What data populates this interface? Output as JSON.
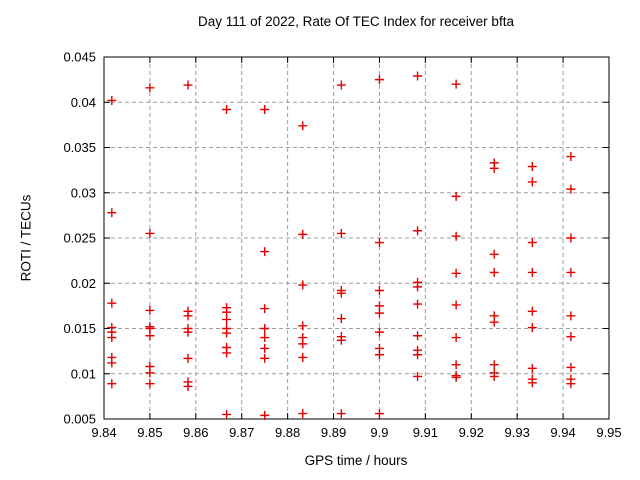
{
  "chart_data": {
    "type": "scatter",
    "title": "Day 111 of 2022, Rate Of TEC Index for receiver bfta",
    "xlabel": "GPS time / hours",
    "ylabel": "ROTI / TECUs",
    "xlim": [
      9.84,
      9.95
    ],
    "ylim": [
      0.005,
      0.045
    ],
    "grid": true,
    "legend": "none",
    "marker": "plus",
    "marker_color": "#e60000",
    "grid_color": "#9e9e9e",
    "axis_color": "#000000",
    "xticks": {
      "values": [
        9.84,
        9.85,
        9.86,
        9.87,
        9.88,
        9.89,
        9.9,
        9.91,
        9.92,
        9.93,
        9.94,
        9.95
      ],
      "labels": [
        "9.84",
        "9.85",
        "9.86",
        "9.87",
        "9.88",
        "9.89",
        "9.9",
        "9.91",
        "9.92",
        "9.93",
        "9.94",
        "9.95"
      ]
    },
    "yticks": {
      "values": [
        0.005,
        0.01,
        0.015,
        0.02,
        0.025,
        0.03,
        0.035,
        0.04,
        0.045
      ],
      "labels": [
        "0.005",
        "0.01",
        "0.015",
        "0.02",
        "0.025",
        "0.03",
        "0.035",
        "0.04",
        "0.045"
      ]
    },
    "series": [
      {
        "name": "ROTI",
        "points": [
          [
            9.8417,
            0.0402
          ],
          [
            9.8417,
            0.0278
          ],
          [
            9.8417,
            0.0178
          ],
          [
            9.8417,
            0.0151
          ],
          [
            9.8417,
            0.0146
          ],
          [
            9.8417,
            0.014
          ],
          [
            9.8417,
            0.0118
          ],
          [
            9.8417,
            0.0112
          ],
          [
            9.8417,
            0.0089
          ],
          [
            9.85,
            0.0416
          ],
          [
            9.85,
            0.0255
          ],
          [
            9.85,
            0.017
          ],
          [
            9.85,
            0.0152
          ],
          [
            9.85,
            0.015
          ],
          [
            9.85,
            0.0142
          ],
          [
            9.85,
            0.0108
          ],
          [
            9.85,
            0.0101
          ],
          [
            9.85,
            0.0089
          ],
          [
            9.8583,
            0.0419
          ],
          [
            9.8583,
            0.0169
          ],
          [
            9.8583,
            0.0164
          ],
          [
            9.8583,
            0.015
          ],
          [
            9.8583,
            0.0146
          ],
          [
            9.8583,
            0.0117
          ],
          [
            9.8583,
            0.0091
          ],
          [
            9.8583,
            0.0086
          ],
          [
            9.8667,
            0.0392
          ],
          [
            9.8667,
            0.0173
          ],
          [
            9.8667,
            0.0168
          ],
          [
            9.8667,
            0.016
          ],
          [
            9.8667,
            0.015
          ],
          [
            9.8667,
            0.0145
          ],
          [
            9.8667,
            0.0129
          ],
          [
            9.8667,
            0.0123
          ],
          [
            9.8667,
            0.0055
          ],
          [
            9.875,
            0.0392
          ],
          [
            9.875,
            0.0235
          ],
          [
            9.875,
            0.0172
          ],
          [
            9.875,
            0.015
          ],
          [
            9.875,
            0.014
          ],
          [
            9.875,
            0.0128
          ],
          [
            9.875,
            0.0117
          ],
          [
            9.875,
            0.0054
          ],
          [
            9.8833,
            0.0374
          ],
          [
            9.8833,
            0.0254
          ],
          [
            9.8833,
            0.0198
          ],
          [
            9.8833,
            0.0153
          ],
          [
            9.8833,
            0.014
          ],
          [
            9.8833,
            0.0133
          ],
          [
            9.8833,
            0.0118
          ],
          [
            9.8833,
            0.0056
          ],
          [
            9.8917,
            0.0419
          ],
          [
            9.8917,
            0.0255
          ],
          [
            9.8917,
            0.0192
          ],
          [
            9.8917,
            0.0189
          ],
          [
            9.8917,
            0.0161
          ],
          [
            9.8917,
            0.0141
          ],
          [
            9.8917,
            0.0137
          ],
          [
            9.8917,
            0.0056
          ],
          [
            9.9,
            0.0425
          ],
          [
            9.9,
            0.0245
          ],
          [
            9.9,
            0.0192
          ],
          [
            9.9,
            0.0175
          ],
          [
            9.9,
            0.0167
          ],
          [
            9.9,
            0.0146
          ],
          [
            9.9,
            0.0128
          ],
          [
            9.9,
            0.0121
          ],
          [
            9.9,
            0.0056
          ],
          [
            9.9083,
            0.0429
          ],
          [
            9.9083,
            0.0258
          ],
          [
            9.9083,
            0.0201
          ],
          [
            9.9083,
            0.0196
          ],
          [
            9.9083,
            0.0177
          ],
          [
            9.9083,
            0.0142
          ],
          [
            9.9083,
            0.0126
          ],
          [
            9.9083,
            0.0121
          ],
          [
            9.9083,
            0.0097
          ],
          [
            9.9167,
            0.042
          ],
          [
            9.9167,
            0.0296
          ],
          [
            9.9167,
            0.0252
          ],
          [
            9.9167,
            0.0211
          ],
          [
            9.9167,
            0.0176
          ],
          [
            9.9167,
            0.014
          ],
          [
            9.9167,
            0.011
          ],
          [
            9.9167,
            0.0098
          ],
          [
            9.9167,
            0.0096
          ],
          [
            9.925,
            0.0333
          ],
          [
            9.925,
            0.0327
          ],
          [
            9.925,
            0.0232
          ],
          [
            9.925,
            0.0212
          ],
          [
            9.925,
            0.0164
          ],
          [
            9.925,
            0.0157
          ],
          [
            9.925,
            0.011
          ],
          [
            9.925,
            0.0101
          ],
          [
            9.925,
            0.0097
          ],
          [
            9.9333,
            0.0329
          ],
          [
            9.9333,
            0.0312
          ],
          [
            9.9333,
            0.0245
          ],
          [
            9.9333,
            0.0212
          ],
          [
            9.9333,
            0.0169
          ],
          [
            9.9333,
            0.0151
          ],
          [
            9.9333,
            0.0106
          ],
          [
            9.9333,
            0.0094
          ],
          [
            9.9333,
            0.009
          ],
          [
            9.9417,
            0.034
          ],
          [
            9.9417,
            0.0304
          ],
          [
            9.9417,
            0.025
          ],
          [
            9.9417,
            0.0212
          ],
          [
            9.9417,
            0.0164
          ],
          [
            9.9417,
            0.0141
          ],
          [
            9.9417,
            0.0107
          ],
          [
            9.9417,
            0.0094
          ],
          [
            9.9417,
            0.0089
          ]
        ]
      }
    ]
  }
}
